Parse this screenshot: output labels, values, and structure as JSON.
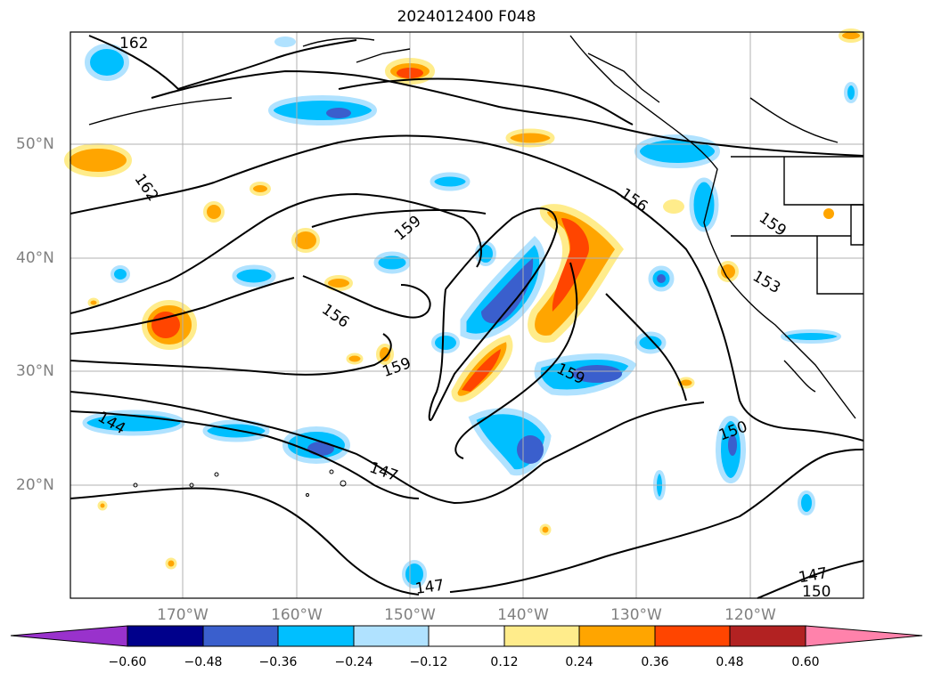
{
  "title": "2024012400 F048",
  "lat_labels": [
    "50°N",
    "40°N",
    "30°N",
    "20°N"
  ],
  "lon_labels": [
    "170°W",
    "160°W",
    "150°W",
    "140°W",
    "130°W",
    "120°W"
  ],
  "contour_labels": [
    "162",
    "162",
    "159",
    "159",
    "159",
    "156",
    "156",
    "159",
    "153",
    "150",
    "147",
    "147",
    "147",
    "150",
    "144"
  ],
  "colorbar": {
    "ticks": [
      "−0.60",
      "−0.48",
      "−0.36",
      "−0.24",
      "−0.12",
      "0.12",
      "0.24",
      "0.36",
      "0.48",
      "0.60"
    ],
    "colors": [
      "#9932cc",
      "#00008b",
      "#3a5fcd",
      "#00bfff",
      "#b0e2ff",
      "#ffffff",
      "#ffec8b",
      "#ffa500",
      "#ff4500",
      "#b22222",
      "#ff82ab"
    ]
  },
  "colors": {
    "land_outline": "#000000",
    "grid": "#b0b0b0",
    "label_gray": "#808080"
  }
}
